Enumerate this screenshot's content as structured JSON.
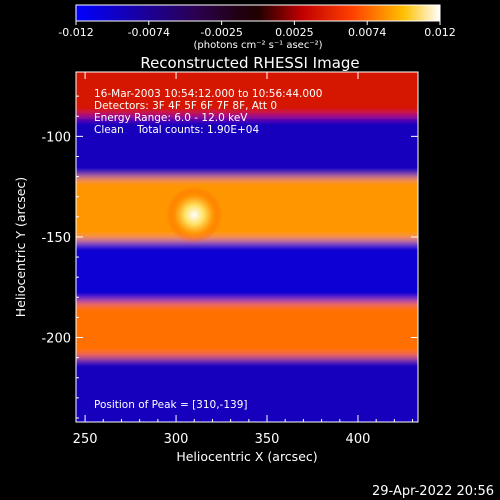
{
  "chart_data": {
    "type": "heatmap",
    "title": "Reconstructed RHESSI Image",
    "xlabel": "Heliocentric X (arcsec)",
    "ylabel": "Heliocentric Y (arcsec)",
    "xlim": [
      245,
      433
    ],
    "ylim": [
      -242,
      -68
    ],
    "xticks": [
      250,
      300,
      350,
      400
    ],
    "yticks": [
      -100,
      -150,
      -200
    ],
    "colorbar": {
      "min": -0.012,
      "max": 0.012,
      "ticks": [
        "-0.012",
        "-0.0074",
        "-0.0025",
        "0.0025",
        "0.0074",
        "0.012"
      ],
      "unit": "(photons cm⁻² s⁻¹ asec⁻²)"
    },
    "bands": [
      {
        "y_center": -80,
        "level": 0.004
      },
      {
        "y_center": -108,
        "level": -0.009
      },
      {
        "y_center": -138,
        "level": 0.0085
      },
      {
        "y_center": -170,
        "level": -0.01
      },
      {
        "y_center": -200,
        "level": 0.0075
      },
      {
        "y_center": -228,
        "level": -0.009
      }
    ],
    "peak": {
      "x": 310,
      "y": -139,
      "value": 0.012
    },
    "annotations": {
      "time": "16-Mar-2003 10:54:12.000 to 10:56:44.000",
      "detectors": "Detectors: 3F 4F 5F 6F 7F 8F, Att 0",
      "energy": "Energy Range: 6.0 - 12.0 keV",
      "clean": "Clean    Total counts: 1.90E+04",
      "peak_text": "Position of Peak = [310,-139]"
    }
  },
  "footer": {
    "date": "29-Apr-2022 20:56"
  }
}
